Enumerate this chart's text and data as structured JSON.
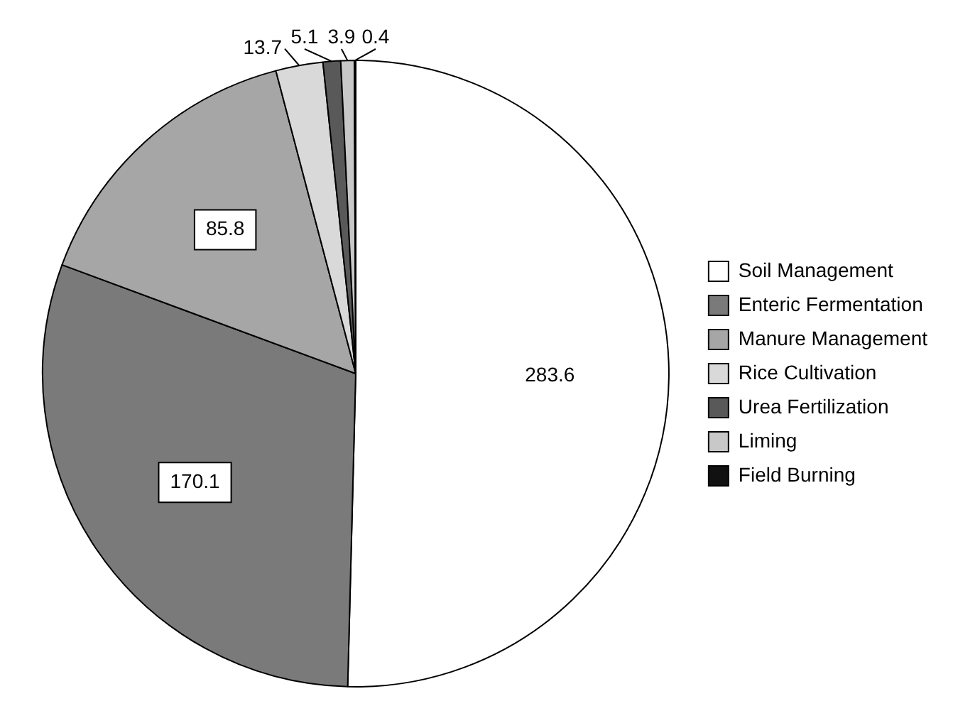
{
  "chart_data": {
    "type": "pie",
    "categories": [
      "Soil Management",
      "Enteric Fermentation",
      "Manure Management",
      "Rice Cultivation",
      "Urea Fertilization",
      "Liming",
      "Field Burning"
    ],
    "values": [
      283.6,
      170.1,
      85.8,
      13.7,
      5.1,
      3.9,
      0.4
    ],
    "colors": [
      "#ffffff",
      "#7a7a7a",
      "#a6a6a6",
      "#d9d9d9",
      "#595959",
      "#c8c8c8",
      "#111111"
    ],
    "data_labels": true,
    "legend": "right"
  }
}
